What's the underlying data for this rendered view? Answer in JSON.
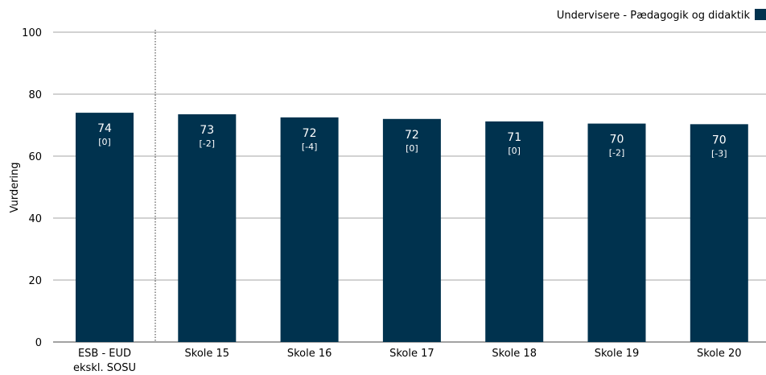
{
  "chart_data": {
    "type": "bar",
    "ylabel": "Vurdering",
    "ylim": [
      0,
      100
    ],
    "yticks": [
      0,
      20,
      40,
      60,
      80,
      100
    ],
    "grid": true,
    "legend_position": "top-right",
    "series": [
      {
        "name": "Undervisere - Pædagogik og didaktik",
        "color": "#00324e",
        "values": [
          74,
          73,
          72,
          72,
          71,
          70,
          70
        ],
        "deltas": [
          "[0]",
          "[-2]",
          "[-4]",
          "[0]",
          "[0]",
          "[-2]",
          "[-3]"
        ]
      }
    ],
    "categories": [
      [
        "ESB - EUD",
        "ekskl. SOSU"
      ],
      [
        "Skole 15"
      ],
      [
        "Skole 16"
      ],
      [
        "Skole 17"
      ],
      [
        "Skole 18"
      ],
      [
        "Skole 19"
      ],
      [
        "Skole 20"
      ]
    ],
    "bar_display_values": [
      74,
      73.5,
      72.5,
      72,
      71.2,
      70.5,
      70.3
    ]
  }
}
